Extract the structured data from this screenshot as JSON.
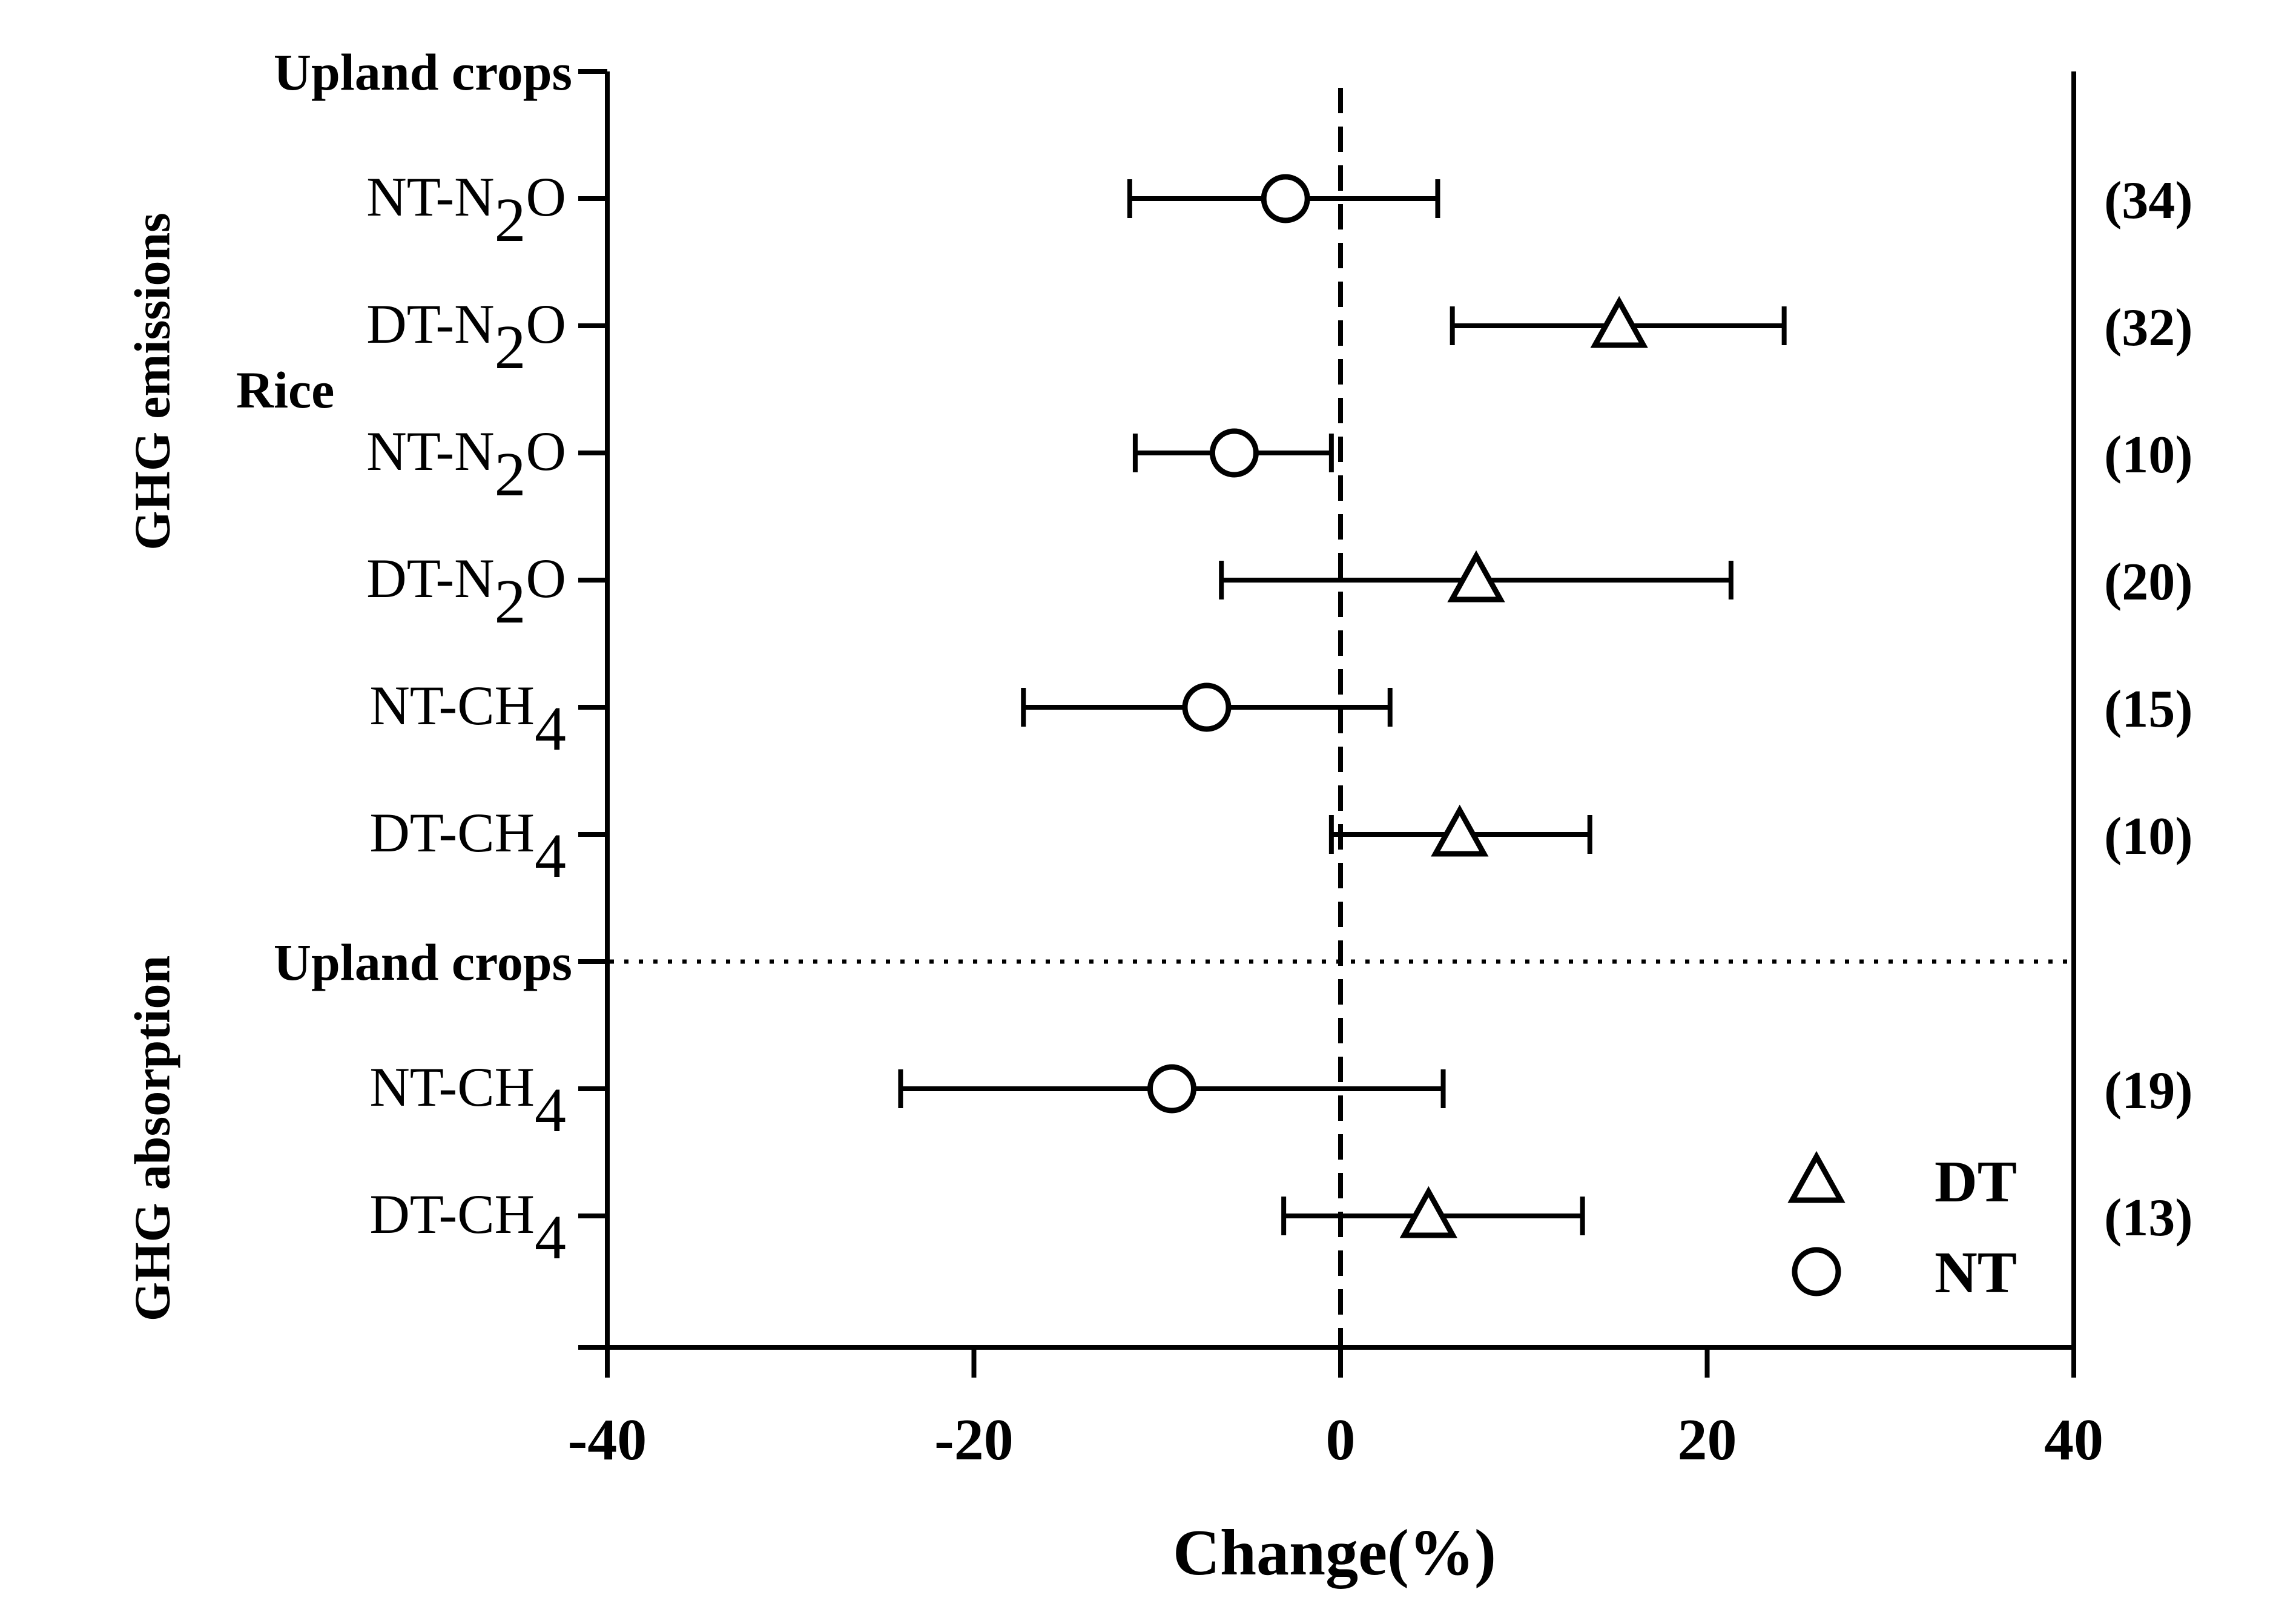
{
  "chart_data": {
    "type": "forest",
    "title": "",
    "xlabel": "Change(%)",
    "xlim": [
      -40,
      40
    ],
    "xticks": [
      -40,
      -20,
      0,
      20,
      40
    ],
    "tick_labels": [
      "-40",
      "-20",
      "0",
      "20",
      "40"
    ],
    "reference_line": 0,
    "group_labels": [
      {
        "id": "g-upland-emission",
        "label": "Upland crops",
        "slot": 0
      },
      {
        "id": "g-rice",
        "label": "Rice",
        "slot": 2.5
      },
      {
        "id": "g-upland-absorption",
        "label": "Upland crops",
        "slot": 7
      }
    ],
    "section_labels": [
      {
        "id": "sec-emissions",
        "label": "GHG emissions"
      },
      {
        "id": "sec-absorption",
        "label": "GHG absorption"
      }
    ],
    "rows": [
      {
        "id": "up-nt-n2o",
        "slot": 1,
        "prefix": "NT-",
        "gas": "N",
        "sub": "2",
        "suffix": "O",
        "marker": "circle",
        "mean": -3,
        "ci": [
          -11.5,
          5.3
        ],
        "n": "(34)"
      },
      {
        "id": "up-dt-n2o",
        "slot": 2,
        "prefix": "DT-",
        "gas": "N",
        "sub": "2",
        "suffix": "O",
        "marker": "triangle",
        "mean": 15.2,
        "ci": [
          6.1,
          24.2
        ],
        "n": "(32)"
      },
      {
        "id": "rice-nt-n2o",
        "slot": 3,
        "prefix": "NT-",
        "gas": "N",
        "sub": "2",
        "suffix": "O",
        "marker": "circle",
        "mean": -5.8,
        "ci": [
          -11.2,
          -0.5
        ],
        "n": "(10)"
      },
      {
        "id": "rice-dt-n2o",
        "slot": 4,
        "prefix": "DT-",
        "gas": "N",
        "sub": "2",
        "suffix": "O",
        "marker": "triangle",
        "mean": 7.4,
        "ci": [
          -6.5,
          21.3
        ],
        "n": "(20)"
      },
      {
        "id": "rice-nt-ch4",
        "slot": 5,
        "prefix": "NT-",
        "gas": "CH",
        "sub": "4",
        "suffix": "",
        "marker": "circle",
        "mean": -7.3,
        "ci": [
          -17.3,
          2.7
        ],
        "n": "(15)"
      },
      {
        "id": "rice-dt-ch4",
        "slot": 6,
        "prefix": "DT-",
        "gas": "CH",
        "sub": "4",
        "suffix": "",
        "marker": "triangle",
        "mean": 6.5,
        "ci": [
          -0.5,
          13.6
        ],
        "n": "(10)"
      },
      {
        "id": "abs-nt-ch4",
        "slot": 8,
        "prefix": "NT-",
        "gas": "CH",
        "sub": "4",
        "suffix": "",
        "marker": "circle",
        "mean": -9.2,
        "ci": [
          -24,
          5.6
        ],
        "n": "(19)"
      },
      {
        "id": "abs-dt-ch4",
        "slot": 9,
        "prefix": "DT-",
        "gas": "CH",
        "sub": "4",
        "suffix": "",
        "marker": "triangle",
        "mean": 4.8,
        "ci": [
          -3.1,
          13.2
        ],
        "n": "(13)"
      }
    ],
    "legend": {
      "placement": "bottom-right",
      "entries": [
        {
          "marker": "triangle",
          "label": "DT"
        },
        {
          "marker": "circle",
          "label": "NT"
        }
      ]
    }
  }
}
